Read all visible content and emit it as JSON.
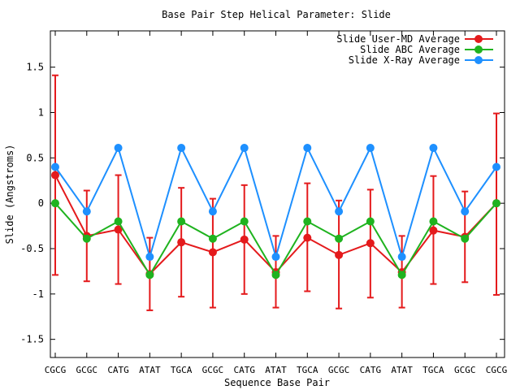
{
  "chart_data": {
    "type": "line",
    "title": "Base Pair Step Helical Parameter: Slide",
    "xlabel": "Sequence Base Pair",
    "ylabel": "Slide (Angstroms)",
    "ylim": [
      -1.7,
      1.9
    ],
    "categories": [
      "CGCG",
      "GCGC",
      "CATG",
      "ATAT",
      "TGCA",
      "GCGC",
      "CATG",
      "ATAT",
      "TGCA",
      "GCGC",
      "CATG",
      "ATAT",
      "TGCA",
      "GCGC",
      "CGCG"
    ],
    "y_ticks": [
      -1.5,
      -1,
      -0.5,
      0,
      0.5,
      1,
      1.5
    ],
    "y_tick_labels": [
      "-1.5",
      "-1",
      "-0.5",
      "0",
      "0.5",
      "1",
      "1.5"
    ],
    "legend_position": "top-right",
    "series": [
      {
        "name": "Slide User-MD Average",
        "color": "#e41a1c",
        "values": [
          0.31,
          -0.36,
          -0.29,
          -0.78,
          -0.43,
          -0.54,
          -0.4,
          -0.76,
          -0.38,
          -0.57,
          -0.44,
          -0.76,
          -0.3,
          -0.37,
          0.0
        ],
        "error_low": [
          -0.79,
          -0.86,
          -0.89,
          -1.18,
          -1.03,
          -1.15,
          -1.0,
          -1.15,
          -0.97,
          -1.16,
          -1.04,
          -1.15,
          -0.89,
          -0.87,
          -1.01
        ],
        "error_high": [
          1.41,
          0.14,
          0.31,
          -0.38,
          0.17,
          0.05,
          0.2,
          -0.36,
          0.22,
          0.03,
          0.15,
          -0.36,
          0.3,
          0.13,
          0.99
        ]
      },
      {
        "name": "Slide ABC Average",
        "color": "#1fb31f",
        "values": [
          0.0,
          -0.39,
          -0.2,
          -0.79,
          -0.2,
          -0.39,
          -0.2,
          -0.79,
          -0.2,
          -0.39,
          -0.2,
          -0.79,
          -0.2,
          -0.39,
          0.0
        ]
      },
      {
        "name": "Slide X-Ray Average",
        "color": "#1e90ff",
        "values": [
          0.4,
          -0.09,
          0.61,
          -0.59,
          0.61,
          -0.09,
          0.61,
          -0.59,
          0.61,
          -0.09,
          0.61,
          -0.59,
          0.61,
          -0.09,
          0.4
        ]
      }
    ]
  }
}
